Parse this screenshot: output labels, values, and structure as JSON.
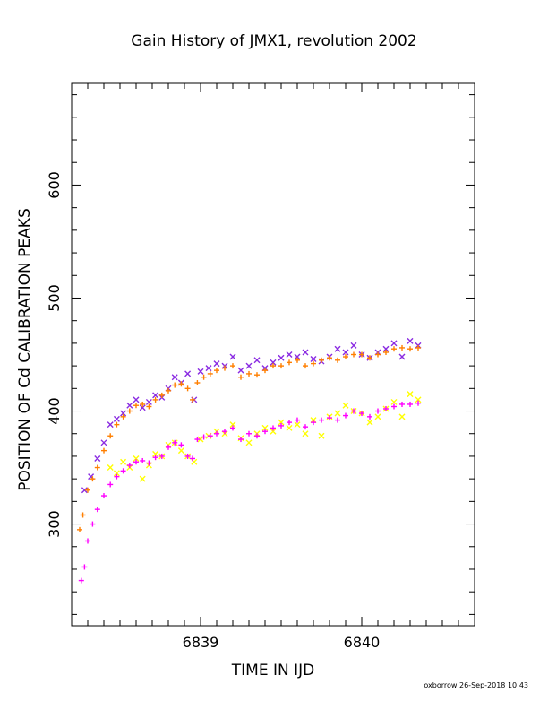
{
  "chart_data": {
    "type": "scatter",
    "title": "Gain History of JMX1, revolution 2002",
    "xlabel": "TIME IN IJD",
    "ylabel": "POSITION OF Cd CALIBRATION PEAKS",
    "xlim": [
      6838.2,
      6840.7
    ],
    "ylim": [
      210,
      690
    ],
    "x_ticks": [
      6839,
      6840
    ],
    "y_ticks": [
      300,
      400,
      500,
      600
    ],
    "grid": false,
    "series": [
      {
        "color": "#8a2be2",
        "marker": "x",
        "x": [
          6838.28,
          6838.32,
          6838.36,
          6838.4,
          6838.44,
          6838.48,
          6838.52,
          6838.56,
          6838.6,
          6838.64,
          6838.68,
          6838.72,
          6838.76,
          6838.8,
          6838.84,
          6838.88,
          6838.92,
          6838.96,
          6839.0,
          6839.05,
          6839.1,
          6839.15,
          6839.2,
          6839.25,
          6839.3,
          6839.35,
          6839.4,
          6839.45,
          6839.5,
          6839.55,
          6839.6,
          6839.65,
          6839.7,
          6839.75,
          6839.8,
          6839.85,
          6839.9,
          6839.95,
          6840.0,
          6840.05,
          6840.1,
          6840.15,
          6840.2,
          6840.25,
          6840.3,
          6840.35
        ],
        "y": [
          330,
          342,
          358,
          372,
          388,
          393,
          398,
          405,
          410,
          403,
          408,
          414,
          412,
          420,
          430,
          425,
          433,
          410,
          435,
          438,
          442,
          440,
          448,
          436,
          440,
          445,
          438,
          443,
          447,
          450,
          448,
          452,
          446,
          444,
          448,
          455,
          452,
          458,
          450,
          447,
          452,
          455,
          460,
          448,
          462,
          458
        ]
      },
      {
        "color": "#ff7f00",
        "marker": "+",
        "x": [
          6838.25,
          6838.27,
          6838.3,
          6838.33,
          6838.36,
          6838.4,
          6838.44,
          6838.48,
          6838.52,
          6838.56,
          6838.6,
          6838.64,
          6838.68,
          6838.72,
          6838.76,
          6838.8,
          6838.84,
          6838.88,
          6838.92,
          6838.95,
          6838.98,
          6839.02,
          6839.06,
          6839.1,
          6839.15,
          6839.2,
          6839.25,
          6839.3,
          6839.35,
          6839.4,
          6839.45,
          6839.5,
          6839.55,
          6839.6,
          6839.65,
          6839.7,
          6839.75,
          6839.8,
          6839.85,
          6839.9,
          6839.95,
          6840.0,
          6840.05,
          6840.1,
          6840.15,
          6840.2,
          6840.25,
          6840.3,
          6840.35
        ],
        "y": [
          295,
          308,
          330,
          340,
          350,
          365,
          378,
          388,
          395,
          400,
          405,
          406,
          404,
          410,
          414,
          418,
          423,
          424,
          420,
          410,
          425,
          430,
          433,
          436,
          438,
          440,
          430,
          433,
          432,
          436,
          440,
          440,
          443,
          445,
          440,
          442,
          445,
          447,
          445,
          448,
          450,
          450,
          447,
          450,
          452,
          455,
          456,
          455,
          456
        ]
      },
      {
        "color": "#ffff00",
        "marker": "x",
        "x": [
          6838.44,
          6838.48,
          6838.52,
          6838.56,
          6838.6,
          6838.64,
          6838.68,
          6838.72,
          6838.76,
          6838.8,
          6838.84,
          6838.88,
          6838.92,
          6838.96,
          6839.0,
          6839.05,
          6839.1,
          6839.15,
          6839.2,
          6839.25,
          6839.3,
          6839.35,
          6839.4,
          6839.45,
          6839.5,
          6839.55,
          6839.6,
          6839.65,
          6839.7,
          6839.75,
          6839.8,
          6839.85,
          6839.9,
          6839.95,
          6840.0,
          6840.05,
          6840.1,
          6840.15,
          6840.2,
          6840.25,
          6840.3,
          6840.35
        ],
        "y": [
          350,
          345,
          355,
          350,
          358,
          340,
          352,
          362,
          360,
          370,
          372,
          365,
          360,
          355,
          375,
          378,
          382,
          380,
          388,
          376,
          372,
          380,
          385,
          382,
          390,
          385,
          388,
          380,
          392,
          378,
          395,
          398,
          405,
          400,
          398,
          390,
          395,
          402,
          408,
          395,
          415,
          410
        ]
      },
      {
        "color": "#ff00ff",
        "marker": "+",
        "x": [
          6838.26,
          6838.28,
          6838.3,
          6838.33,
          6838.36,
          6838.4,
          6838.44,
          6838.48,
          6838.52,
          6838.56,
          6838.6,
          6838.64,
          6838.68,
          6838.72,
          6838.76,
          6838.8,
          6838.84,
          6838.88,
          6838.92,
          6838.95,
          6838.98,
          6839.02,
          6839.06,
          6839.1,
          6839.15,
          6839.2,
          6839.25,
          6839.3,
          6839.35,
          6839.4,
          6839.45,
          6839.5,
          6839.55,
          6839.6,
          6839.65,
          6839.7,
          6839.75,
          6839.8,
          6839.85,
          6839.9,
          6839.95,
          6840.0,
          6840.05,
          6840.1,
          6840.15,
          6840.2,
          6840.25,
          6840.3,
          6840.35
        ],
        "y": [
          250,
          262,
          285,
          300,
          313,
          325,
          335,
          342,
          347,
          352,
          355,
          356,
          354,
          359,
          360,
          368,
          372,
          370,
          360,
          358,
          375,
          377,
          378,
          380,
          382,
          385,
          375,
          380,
          378,
          382,
          385,
          387,
          390,
          392,
          386,
          390,
          392,
          394,
          392,
          396,
          400,
          398,
          395,
          400,
          402,
          404,
          406,
          406,
          407
        ]
      }
    ]
  },
  "footer": "oxborrow 26-Sep-2018 10:43"
}
